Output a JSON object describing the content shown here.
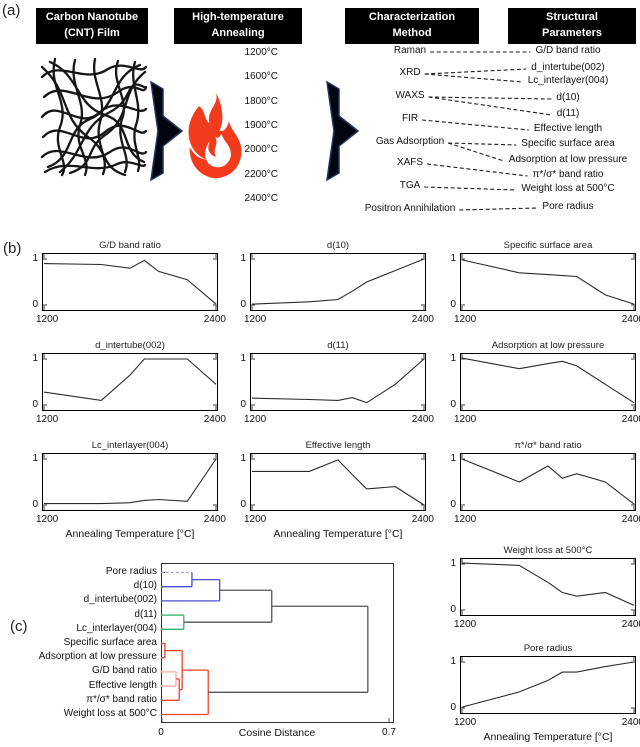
{
  "panel_a": {
    "label": "(a)",
    "boxes": [
      "Carbon Nanotube\n(CNT) Film",
      "High-temperature\nAnnealing",
      "Characterization\nMethod",
      "Structural\nParameters"
    ],
    "temperatures": [
      "1200°C",
      "1600°C",
      "1800°C",
      "1900°C",
      "2000°C",
      "2200°C",
      "2400°C"
    ],
    "methods": [
      "Raman",
      "XRD",
      "WAXS",
      "FIR",
      "Gas Adsorption",
      "XAFS",
      "TGA",
      "Positron Annihilation"
    ],
    "parameters": [
      "G/D band ratio",
      "d_intertube(002)",
      "Lc_interlayer(004)",
      "d(10)",
      "d(11)",
      "Effective length",
      "Specific surface area",
      "Adsorption at low pressure",
      "π*/σ* band ratio",
      "Weight loss at 500°C",
      "Pore radius"
    ],
    "links": [
      [
        0,
        0
      ],
      [
        1,
        1
      ],
      [
        1,
        2
      ],
      [
        2,
        3
      ],
      [
        2,
        4
      ],
      [
        3,
        5
      ],
      [
        4,
        6
      ],
      [
        4,
        7
      ],
      [
        5,
        8
      ],
      [
        6,
        9
      ],
      [
        7,
        10
      ]
    ],
    "icons": [
      "cnt-film-sketch",
      "flow-arrow-icon",
      "flame-icon"
    ],
    "flame_color": "#f23a1c",
    "arrow_color": "#05050f"
  },
  "panel_b": {
    "label": "(b)"
  },
  "panel_c": {
    "label": "(c)"
  },
  "chart_data": {
    "line_plots": {
      "type": "line",
      "x": [
        1200,
        1600,
        1800,
        1900,
        2000,
        2200,
        2400
      ],
      "xlim": [
        1200,
        2400
      ],
      "ylim": [
        0,
        1
      ],
      "xticks": [
        "1200",
        "2400"
      ],
      "yticks": [
        "0",
        "1"
      ],
      "xlabel": "Annealing Temperature [°C]",
      "line_color": "#2b2b2b",
      "series": [
        {
          "name": "G/D band ratio",
          "values": [
            0.9,
            0.88,
            0.8,
            0.97,
            0.73,
            0.55,
            0.02
          ],
          "col": 0,
          "row": 0
        },
        {
          "name": "d(10)",
          "values": [
            0.02,
            0.07,
            0.12,
            0.3,
            0.5,
            0.75,
            1.0
          ],
          "col": 1,
          "row": 0
        },
        {
          "name": "Specific surface area",
          "values": [
            0.98,
            0.7,
            0.66,
            0.64,
            0.62,
            0.22,
            0.02
          ],
          "col": 2,
          "row": 0
        },
        {
          "name": "d_intertube(002)",
          "values": [
            0.28,
            0.1,
            0.65,
            1.0,
            1.0,
            1.0,
            0.45
          ],
          "col": 0,
          "row": 1
        },
        {
          "name": "d(11)",
          "values": [
            0.15,
            0.12,
            0.1,
            0.16,
            0.05,
            0.45,
            1.0
          ],
          "col": 1,
          "row": 1
        },
        {
          "name": "Adsorption at low pressure",
          "values": [
            1.02,
            0.79,
            0.9,
            0.95,
            0.85,
            0.45,
            0.05
          ],
          "col": 2,
          "row": 1
        },
        {
          "name": "Lc_interlayer(004)",
          "values": [
            0.03,
            0.03,
            0.05,
            0.1,
            0.12,
            0.08,
            1.0
          ],
          "col": 0,
          "row": 2,
          "show_xlabel": true
        },
        {
          "name": "Effective length",
          "values": [
            0.73,
            0.73,
            0.98,
            0.66,
            0.35,
            0.4,
            0.0
          ],
          "col": 1,
          "row": 2,
          "show_xlabel": true
        },
        {
          "name": "π*/σ* band ratio",
          "values": [
            1.0,
            0.5,
            0.85,
            0.58,
            0.68,
            0.5,
            0.02
          ],
          "col": 2,
          "row": 2
        },
        {
          "name": "Weight loss at 500°C",
          "values": [
            1.02,
            0.97,
            0.6,
            0.38,
            0.3,
            0.38,
            0.1
          ],
          "col": 2,
          "row": 3
        },
        {
          "name": "Pore radius",
          "values": [
            0.02,
            0.35,
            0.6,
            0.78,
            0.78,
            0.9,
            1.0
          ],
          "col": 2,
          "row": 4,
          "show_xlabel": true
        }
      ]
    },
    "dendrogram": {
      "type": "dendrogram",
      "xlabel": "Cosine Distance",
      "xlim": [
        0,
        0.7
      ],
      "xticks": [
        "0",
        "0.7"
      ],
      "leaves": [
        "Pore radius",
        "d(10)",
        "d_intertube(002)",
        "d(11)",
        "Lc_interlayer(004)",
        "Specific surface area",
        "Adsorption at low pressure",
        "G/D band ratio",
        "Effective length",
        "π*/σ* band ratio",
        "Weight loss at 500°C"
      ],
      "colors": {
        "blue": "#4a4ad2",
        "green": "#2eb06c",
        "red": "#e8452f",
        "pink": "#f6aaa1",
        "gray": "#555555"
      },
      "merges": [
        {
          "id": "M0",
          "a": "L0",
          "b": "L1",
          "dist": 0.095,
          "color": "#4a4ad2",
          "dashed_a": true,
          "dashed_color": "#9b9be4"
        },
        {
          "id": "M1",
          "a": "M0",
          "b": "L2",
          "dist": 0.18,
          "color": "#4a4ad2"
        },
        {
          "id": "M2",
          "a": "L3",
          "b": "L4",
          "dist": 0.07,
          "color": "#2eb06c"
        },
        {
          "id": "M3",
          "a": "M1",
          "b": "M2",
          "dist": 0.34,
          "color": "#555555"
        },
        {
          "id": "M4",
          "a": "L5",
          "b": "L6",
          "dist": 0.012,
          "color": "#e8452f"
        },
        {
          "id": "M5",
          "a": "L7",
          "b": "L8",
          "dist": 0.046,
          "color": "#f6aaa1"
        },
        {
          "id": "M6",
          "a": "M5",
          "b": "L9",
          "dist": 0.056,
          "color": "#e8452f"
        },
        {
          "id": "M7",
          "a": "M4",
          "b": "M6",
          "dist": 0.065,
          "color": "#e8452f"
        },
        {
          "id": "M8",
          "a": "M7",
          "b": "L10",
          "dist": 0.145,
          "color": "#e8452f"
        },
        {
          "id": "M9",
          "a": "M3",
          "b": "M8",
          "dist": 0.635,
          "color": "#555555"
        }
      ]
    }
  }
}
